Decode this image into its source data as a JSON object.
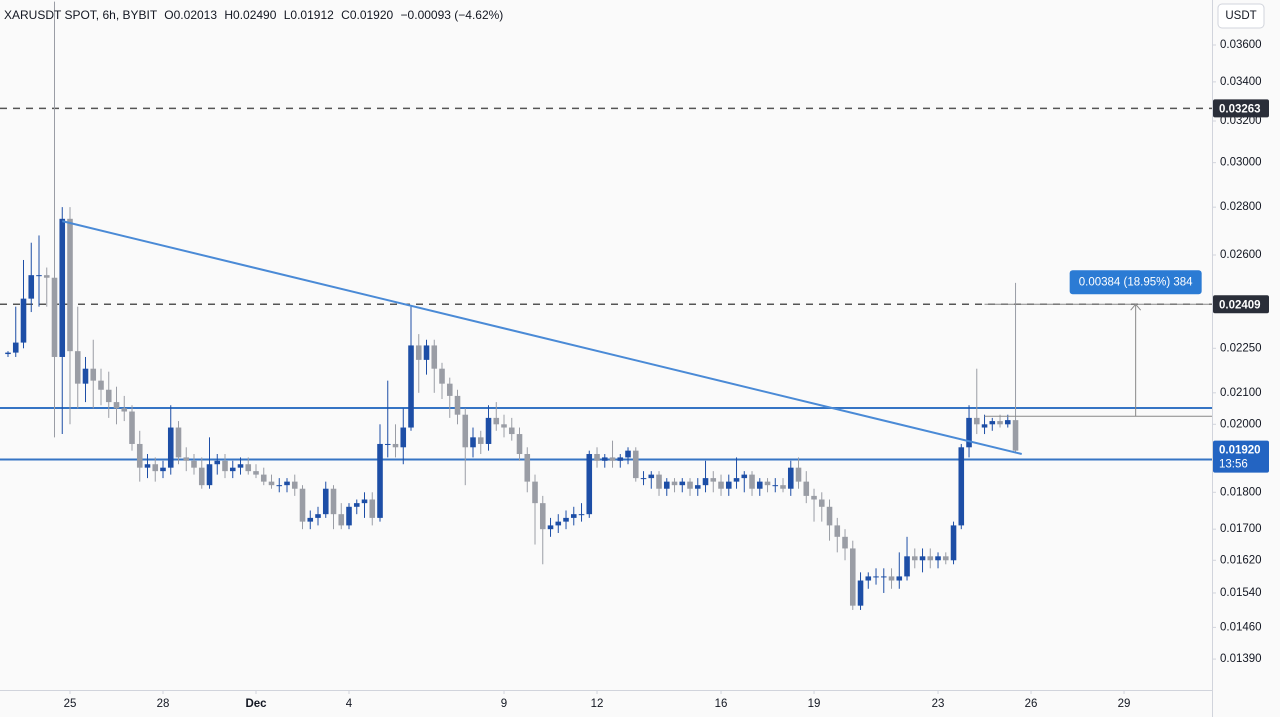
{
  "chart_data": {
    "type": "candlestick",
    "header": {
      "symbol": "XARUSDT SPOT, 6h, BYBIT",
      "open": "O0.02013",
      "high": "H0.02490",
      "low": "L0.01912",
      "close": "C0.01920",
      "change": "−0.00093 (−4.62%)"
    },
    "currency": "USDT",
    "log_scale": true,
    "grid": false,
    "up_color": "#1d4ea6",
    "down_color": "#9a9da5",
    "xlim": [
      -1.032,
      155.35
    ],
    "ylim": [
      0.01325,
      0.0386
    ],
    "xticks": [
      {
        "value": 8,
        "label": "25"
      },
      {
        "value": 20,
        "label": "28"
      },
      {
        "value": 32,
        "label": "Dec"
      },
      {
        "value": 44,
        "label": "4"
      },
      {
        "value": 64,
        "label": "9"
      },
      {
        "value": 76,
        "label": "12"
      },
      {
        "value": 92,
        "label": "16"
      },
      {
        "value": 104,
        "label": "19"
      },
      {
        "value": 120,
        "label": "23"
      },
      {
        "value": 132,
        "label": "26"
      },
      {
        "value": 144,
        "label": "29"
      }
    ],
    "yticks": [
      {
        "value": 0.036,
        "label": "0.03600"
      },
      {
        "value": 0.034,
        "label": "0.03400"
      },
      {
        "value": 0.032,
        "label": "0.03200"
      },
      {
        "value": 0.03,
        "label": "0.03000"
      },
      {
        "value": 0.028,
        "label": "0.02800"
      },
      {
        "value": 0.026,
        "label": "0.02600"
      },
      {
        "value": 0.0225,
        "label": "0.02250"
      },
      {
        "value": 0.021,
        "label": "0.02100"
      },
      {
        "value": 0.02,
        "label": "0.02000"
      },
      {
        "value": 0.018,
        "label": "0.01800"
      },
      {
        "value": 0.017,
        "label": "0.01700"
      },
      {
        "value": 0.0162,
        "label": "0.01620"
      },
      {
        "value": 0.0154,
        "label": "0.01540"
      },
      {
        "value": 0.0146,
        "label": "0.01460"
      },
      {
        "value": 0.0139,
        "label": "0.01390"
      }
    ],
    "candles": [
      [
        0.0223,
        0.0224,
        0.0222,
        0.02235
      ],
      [
        0.02235,
        0.024,
        0.0222,
        0.0227
      ],
      [
        0.0227,
        0.0258,
        0.0225,
        0.0243
      ],
      [
        0.0243,
        0.0265,
        0.0238,
        0.0252
      ],
      [
        0.0252,
        0.0268,
        0.024,
        0.0252
      ],
      [
        0.0252,
        0.0255,
        0.024,
        0.0251
      ],
      [
        0.0251,
        0.0385,
        0.0196,
        0.0222
      ],
      [
        0.0222,
        0.028,
        0.0197,
        0.0275
      ],
      [
        0.0275,
        0.028,
        0.02,
        0.0224
      ],
      [
        0.0224,
        0.024,
        0.0205,
        0.0213
      ],
      [
        0.0213,
        0.0222,
        0.0207,
        0.0218
      ],
      [
        0.0218,
        0.0228,
        0.0205,
        0.0214
      ],
      [
        0.0214,
        0.0218,
        0.0206,
        0.0211
      ],
      [
        0.0211,
        0.0217,
        0.0202,
        0.0207
      ],
      [
        0.0207,
        0.0212,
        0.02,
        0.0205
      ],
      [
        0.0205,
        0.0209,
        0.0201,
        0.0204
      ],
      [
        0.0204,
        0.0206,
        0.0192,
        0.0194
      ],
      [
        0.0194,
        0.0198,
        0.0183,
        0.0187
      ],
      [
        0.0187,
        0.0191,
        0.0184,
        0.0188
      ],
      [
        0.0188,
        0.019,
        0.0183,
        0.0186
      ],
      [
        0.0186,
        0.0189,
        0.0184,
        0.0187
      ],
      [
        0.0187,
        0.0206,
        0.0185,
        0.0199
      ],
      [
        0.0199,
        0.0201,
        0.0188,
        0.019
      ],
      [
        0.019,
        0.0193,
        0.0186,
        0.0189
      ],
      [
        0.0189,
        0.0191,
        0.0185,
        0.0187
      ],
      [
        0.0187,
        0.019,
        0.0181,
        0.0182
      ],
      [
        0.0182,
        0.0196,
        0.0181,
        0.0188
      ],
      [
        0.0188,
        0.0191,
        0.0185,
        0.0189
      ],
      [
        0.0189,
        0.0191,
        0.0184,
        0.0186
      ],
      [
        0.0186,
        0.0189,
        0.0184,
        0.0187
      ],
      [
        0.0187,
        0.019,
        0.0185,
        0.0188
      ],
      [
        0.0188,
        0.019,
        0.0185,
        0.0186
      ],
      [
        0.0186,
        0.0188,
        0.0184,
        0.0185
      ],
      [
        0.0185,
        0.0187,
        0.0182,
        0.0183
      ],
      [
        0.0183,
        0.0185,
        0.0181,
        0.0182
      ],
      [
        0.0182,
        0.0184,
        0.018,
        0.0182
      ],
      [
        0.0182,
        0.0184,
        0.018,
        0.0183
      ],
      [
        0.0183,
        0.0185,
        0.0179,
        0.0181
      ],
      [
        0.0181,
        0.0182,
        0.017,
        0.0172
      ],
      [
        0.0172,
        0.0175,
        0.017,
        0.0173
      ],
      [
        0.0173,
        0.0176,
        0.0171,
        0.0174
      ],
      [
        0.0174,
        0.0183,
        0.0173,
        0.0181
      ],
      [
        0.0181,
        0.0182,
        0.017,
        0.0174
      ],
      [
        0.0174,
        0.0177,
        0.017,
        0.0171
      ],
      [
        0.0171,
        0.0177,
        0.017,
        0.0176
      ],
      [
        0.0176,
        0.0178,
        0.0174,
        0.0177
      ],
      [
        0.0177,
        0.018,
        0.0173,
        0.0178
      ],
      [
        0.0178,
        0.018,
        0.0171,
        0.0173
      ],
      [
        0.0173,
        0.02,
        0.0172,
        0.0194
      ],
      [
        0.0194,
        0.0214,
        0.019,
        0.0194
      ],
      [
        0.0194,
        0.02,
        0.019,
        0.0193
      ],
      [
        0.0193,
        0.0205,
        0.0188,
        0.0199
      ],
      [
        0.0199,
        0.024,
        0.0198,
        0.0226
      ],
      [
        0.0226,
        0.023,
        0.021,
        0.0221
      ],
      [
        0.0221,
        0.0228,
        0.0216,
        0.0226
      ],
      [
        0.0226,
        0.0228,
        0.021,
        0.0218
      ],
      [
        0.0218,
        0.022,
        0.0208,
        0.0213
      ],
      [
        0.0213,
        0.0215,
        0.0202,
        0.0209
      ],
      [
        0.0209,
        0.0211,
        0.02,
        0.0203
      ],
      [
        0.0203,
        0.0205,
        0.0182,
        0.0193
      ],
      [
        0.0193,
        0.0199,
        0.019,
        0.0196
      ],
      [
        0.0196,
        0.0198,
        0.0191,
        0.0194
      ],
      [
        0.0194,
        0.0206,
        0.0192,
        0.0202
      ],
      [
        0.0202,
        0.0207,
        0.0198,
        0.02
      ],
      [
        0.02,
        0.0203,
        0.0196,
        0.0199
      ],
      [
        0.0199,
        0.0202,
        0.0195,
        0.0197
      ],
      [
        0.0197,
        0.0199,
        0.0189,
        0.0191
      ],
      [
        0.0191,
        0.0193,
        0.018,
        0.0183
      ],
      [
        0.0183,
        0.0185,
        0.0166,
        0.0177
      ],
      [
        0.0177,
        0.0179,
        0.0161,
        0.017
      ],
      [
        0.017,
        0.0173,
        0.0168,
        0.0171
      ],
      [
        0.0171,
        0.0174,
        0.0169,
        0.0172
      ],
      [
        0.0172,
        0.0175,
        0.017,
        0.0173
      ],
      [
        0.0173,
        0.0176,
        0.0171,
        0.0174
      ],
      [
        0.0174,
        0.0177,
        0.0172,
        0.0174
      ],
      [
        0.0174,
        0.0192,
        0.0173,
        0.0191
      ],
      [
        0.0191,
        0.0193,
        0.0187,
        0.0189
      ],
      [
        0.0189,
        0.0191,
        0.0187,
        0.019
      ],
      [
        0.019,
        0.0195,
        0.0187,
        0.0189
      ],
      [
        0.0189,
        0.0191,
        0.0187,
        0.019
      ],
      [
        0.019,
        0.0193,
        0.0188,
        0.0192
      ],
      [
        0.0192,
        0.0193,
        0.0183,
        0.0184
      ],
      [
        0.0184,
        0.0186,
        0.0182,
        0.0184
      ],
      [
        0.0184,
        0.0186,
        0.0181,
        0.0185
      ],
      [
        0.0185,
        0.0186,
        0.0179,
        0.0181
      ],
      [
        0.0181,
        0.0184,
        0.0179,
        0.0183
      ],
      [
        0.0183,
        0.0184,
        0.018,
        0.0182
      ],
      [
        0.0182,
        0.0184,
        0.018,
        0.0183
      ],
      [
        0.0183,
        0.0184,
        0.0179,
        0.0181
      ],
      [
        0.0181,
        0.0184,
        0.0179,
        0.0182
      ],
      [
        0.0182,
        0.0189,
        0.018,
        0.0184
      ],
      [
        0.0184,
        0.0186,
        0.018,
        0.0183
      ],
      [
        0.0183,
        0.0185,
        0.0179,
        0.0181
      ],
      [
        0.0181,
        0.0185,
        0.0179,
        0.0183
      ],
      [
        0.0183,
        0.019,
        0.0181,
        0.0184
      ],
      [
        0.0184,
        0.0186,
        0.018,
        0.0185
      ],
      [
        0.0185,
        0.0186,
        0.0179,
        0.0181
      ],
      [
        0.0181,
        0.0184,
        0.0179,
        0.0183
      ],
      [
        0.0183,
        0.0184,
        0.018,
        0.0182
      ],
      [
        0.0182,
        0.0184,
        0.018,
        0.0182
      ],
      [
        0.0182,
        0.0184,
        0.018,
        0.0181
      ],
      [
        0.0181,
        0.0189,
        0.0179,
        0.0187
      ],
      [
        0.0187,
        0.019,
        0.0181,
        0.0183
      ],
      [
        0.0183,
        0.0186,
        0.0177,
        0.0179
      ],
      [
        0.0179,
        0.0181,
        0.0172,
        0.0178
      ],
      [
        0.0178,
        0.018,
        0.0172,
        0.0176
      ],
      [
        0.0176,
        0.0178,
        0.0167,
        0.0171
      ],
      [
        0.0171,
        0.0173,
        0.0164,
        0.0168
      ],
      [
        0.0168,
        0.017,
        0.0162,
        0.0165
      ],
      [
        0.0165,
        0.0167,
        0.015,
        0.0151
      ],
      [
        0.0151,
        0.0159,
        0.015,
        0.0157
      ],
      [
        0.0157,
        0.0159,
        0.0155,
        0.0158
      ],
      [
        0.0158,
        0.016,
        0.0156,
        0.0158
      ],
      [
        0.0158,
        0.016,
        0.0154,
        0.0158
      ],
      [
        0.0158,
        0.016,
        0.0155,
        0.0157
      ],
      [
        0.0157,
        0.0164,
        0.0155,
        0.0158
      ],
      [
        0.0158,
        0.0168,
        0.0157,
        0.0163
      ],
      [
        0.0163,
        0.0165,
        0.016,
        0.0162
      ],
      [
        0.0162,
        0.0165,
        0.0159,
        0.0163
      ],
      [
        0.0163,
        0.0165,
        0.016,
        0.0162
      ],
      [
        0.0162,
        0.0164,
        0.016,
        0.0163
      ],
      [
        0.0163,
        0.0164,
        0.0161,
        0.0162
      ],
      [
        0.0162,
        0.0172,
        0.0161,
        0.0171
      ],
      [
        0.0171,
        0.0194,
        0.017,
        0.0193
      ],
      [
        0.0193,
        0.0206,
        0.019,
        0.0202
      ],
      [
        0.0202,
        0.0218,
        0.0197,
        0.02
      ],
      [
        0.0199,
        0.0203,
        0.0197,
        0.02
      ],
      [
        0.02,
        0.0202,
        0.0198,
        0.0201
      ],
      [
        0.0201,
        0.0203,
        0.0199,
        0.02
      ],
      [
        0.02,
        0.0203,
        0.0199,
        0.02013
      ],
      [
        0.02013,
        0.0249,
        0.01912,
        0.0192
      ]
    ],
    "levels": [
      {
        "value": 0.03263,
        "label": "0.03263"
      },
      {
        "value": 0.02409,
        "label": "0.02409"
      }
    ],
    "support_lines": [
      0.02051,
      0.01894
    ],
    "line_color": "#3574c4",
    "trendline": {
      "x": [
        7,
        130.8
      ],
      "y": [
        0.0274,
        0.0191
      ],
      "color": "#4a8ad6"
    },
    "last_price": {
      "value": 0.0192,
      "label": "0.01920",
      "countdown": "13:56"
    },
    "measure": {
      "label": "0.00384 (18.95%) 384",
      "x": [
        126,
        155.35
      ],
      "arrow_x": 145.5,
      "y": [
        0.02025,
        0.02409
      ]
    }
  }
}
